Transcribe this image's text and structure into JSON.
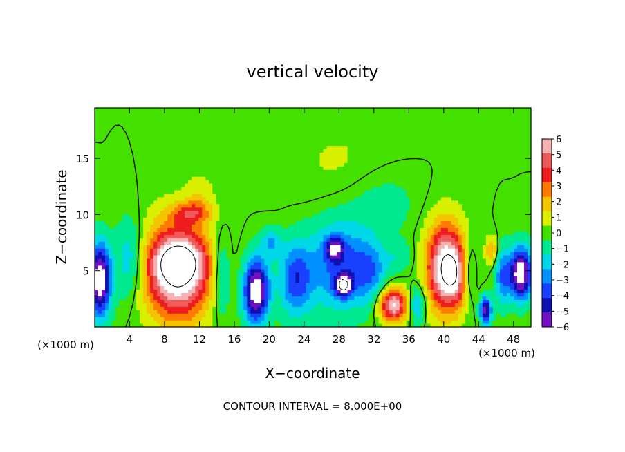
{
  "chart_data": {
    "type": "heatmap",
    "title": "vertical velocity",
    "xlabel": "X−coordinate",
    "ylabel": "Z−coordinate",
    "x_unit_label": "(×1000 m)",
    "y_unit_label": "(×1000 m)",
    "footer": "CONTOUR INTERVAL = 8.000E+00",
    "xlim": [
      0,
      50
    ],
    "ylim": [
      0,
      19.5
    ],
    "x_ticks": [
      4,
      8,
      12,
      16,
      20,
      24,
      28,
      32,
      36,
      40,
      44,
      48
    ],
    "x_tick_labels": [
      "4",
      "8",
      "12",
      "16",
      "20",
      "24",
      "28",
      "32",
      "36",
      "40",
      "44",
      "48"
    ],
    "y_ticks": [
      5,
      10,
      15
    ],
    "y_tick_labels": [
      "5",
      "10",
      "15"
    ],
    "colorbar": {
      "levels": [
        6,
        5,
        4,
        3,
        2,
        1,
        0,
        -1,
        -2,
        -3,
        -4,
        -5,
        -6
      ],
      "labels": [
        "6",
        "5",
        "4",
        "3",
        "2",
        "1",
        "0",
        "−1",
        "−2",
        "−3",
        "−4",
        "−5",
        "−6"
      ],
      "colors": [
        "#f6b2b2",
        "#f05a5a",
        "#ee1c1c",
        "#ff7a00",
        "#f5c400",
        "#d8f000",
        "#44e000",
        "#00e890",
        "#00d8e8",
        "#0090ff",
        "#1a40ff",
        "#1010b0",
        "#7010c0"
      ]
    },
    "background_value": 0,
    "features": [
      {
        "x": 9.5,
        "z": 5.0,
        "rx": 3.6,
        "rz": 4.1,
        "w": 8.5
      },
      {
        "x": 9.7,
        "z": 5.8,
        "rx": 2.6,
        "rz": 1.6,
        "w": 3.5
      },
      {
        "x": 11.0,
        "z": 10.2,
        "rx": 2.2,
        "rz": 0.9,
        "w": 3.0
      },
      {
        "x": 0.6,
        "z": 4.2,
        "rx": 1.2,
        "rz": 3.2,
        "w": -8.0
      },
      {
        "x": 4.0,
        "z": 6.0,
        "rx": 1.6,
        "rz": 3.5,
        "w": -2.5
      },
      {
        "x": 14.5,
        "z": 4.5,
        "rx": 1.0,
        "rz": 3.5,
        "w": -2.5
      },
      {
        "x": 18.5,
        "z": 3.2,
        "rx": 1.4,
        "rz": 2.8,
        "w": -8.0
      },
      {
        "x": 20.2,
        "z": 7.5,
        "rx": 1.2,
        "rz": 1.3,
        "w": -2.5
      },
      {
        "x": 23.0,
        "z": 4.2,
        "rx": 1.8,
        "rz": 3.2,
        "w": -4.0
      },
      {
        "x": 28.0,
        "z": 5.5,
        "rx": 3.8,
        "rz": 4.0,
        "w": -3.8
      },
      {
        "x": 28.5,
        "z": 3.7,
        "rx": 0.9,
        "rz": 0.9,
        "w": -6.5
      },
      {
        "x": 27.5,
        "z": 7.0,
        "rx": 1.0,
        "rz": 1.0,
        "w": -4.5
      },
      {
        "x": 31.5,
        "z": 5.0,
        "rx": 2.0,
        "rz": 2.5,
        "w": -2.5
      },
      {
        "x": 33.0,
        "z": 11.0,
        "rx": 4.0,
        "rz": 3.0,
        "w": -1.0
      },
      {
        "x": 35.0,
        "z": 6.3,
        "rx": 1.5,
        "rz": 1.3,
        "w": -1.2
      },
      {
        "x": 34.2,
        "z": 2.0,
        "rx": 1.5,
        "rz": 1.5,
        "w": 7.0
      },
      {
        "x": 37.0,
        "z": 2.0,
        "rx": 0.9,
        "rz": 1.6,
        "w": -3.0
      },
      {
        "x": 40.2,
        "z": 5.3,
        "rx": 2.1,
        "rz": 3.8,
        "w": 8.0
      },
      {
        "x": 41.6,
        "z": 4.6,
        "rx": 1.4,
        "rz": 2.3,
        "w": 3.0
      },
      {
        "x": 42.8,
        "z": 4.8,
        "rx": 0.8,
        "rz": 2.5,
        "w": -3.0
      },
      {
        "x": 44.8,
        "z": 1.5,
        "rx": 0.6,
        "rz": 1.2,
        "w": -7.0
      },
      {
        "x": 45.5,
        "z": 6.8,
        "rx": 0.6,
        "rz": 1.2,
        "w": 3.0
      },
      {
        "x": 48.8,
        "z": 4.8,
        "rx": 1.3,
        "rz": 2.3,
        "w": -8.0
      },
      {
        "x": 46.7,
        "z": 4.5,
        "rx": 0.8,
        "rz": 2.5,
        "w": -3.5
      },
      {
        "x": 28.0,
        "z": 14.5,
        "rx": 6.0,
        "rz": 4.5,
        "w": 0.6
      },
      {
        "x": 12.0,
        "z": 11.5,
        "rx": 1.5,
        "rz": 2.0,
        "w": 1.2
      }
    ],
    "contour_levels": [
      0,
      8,
      -8
    ]
  }
}
